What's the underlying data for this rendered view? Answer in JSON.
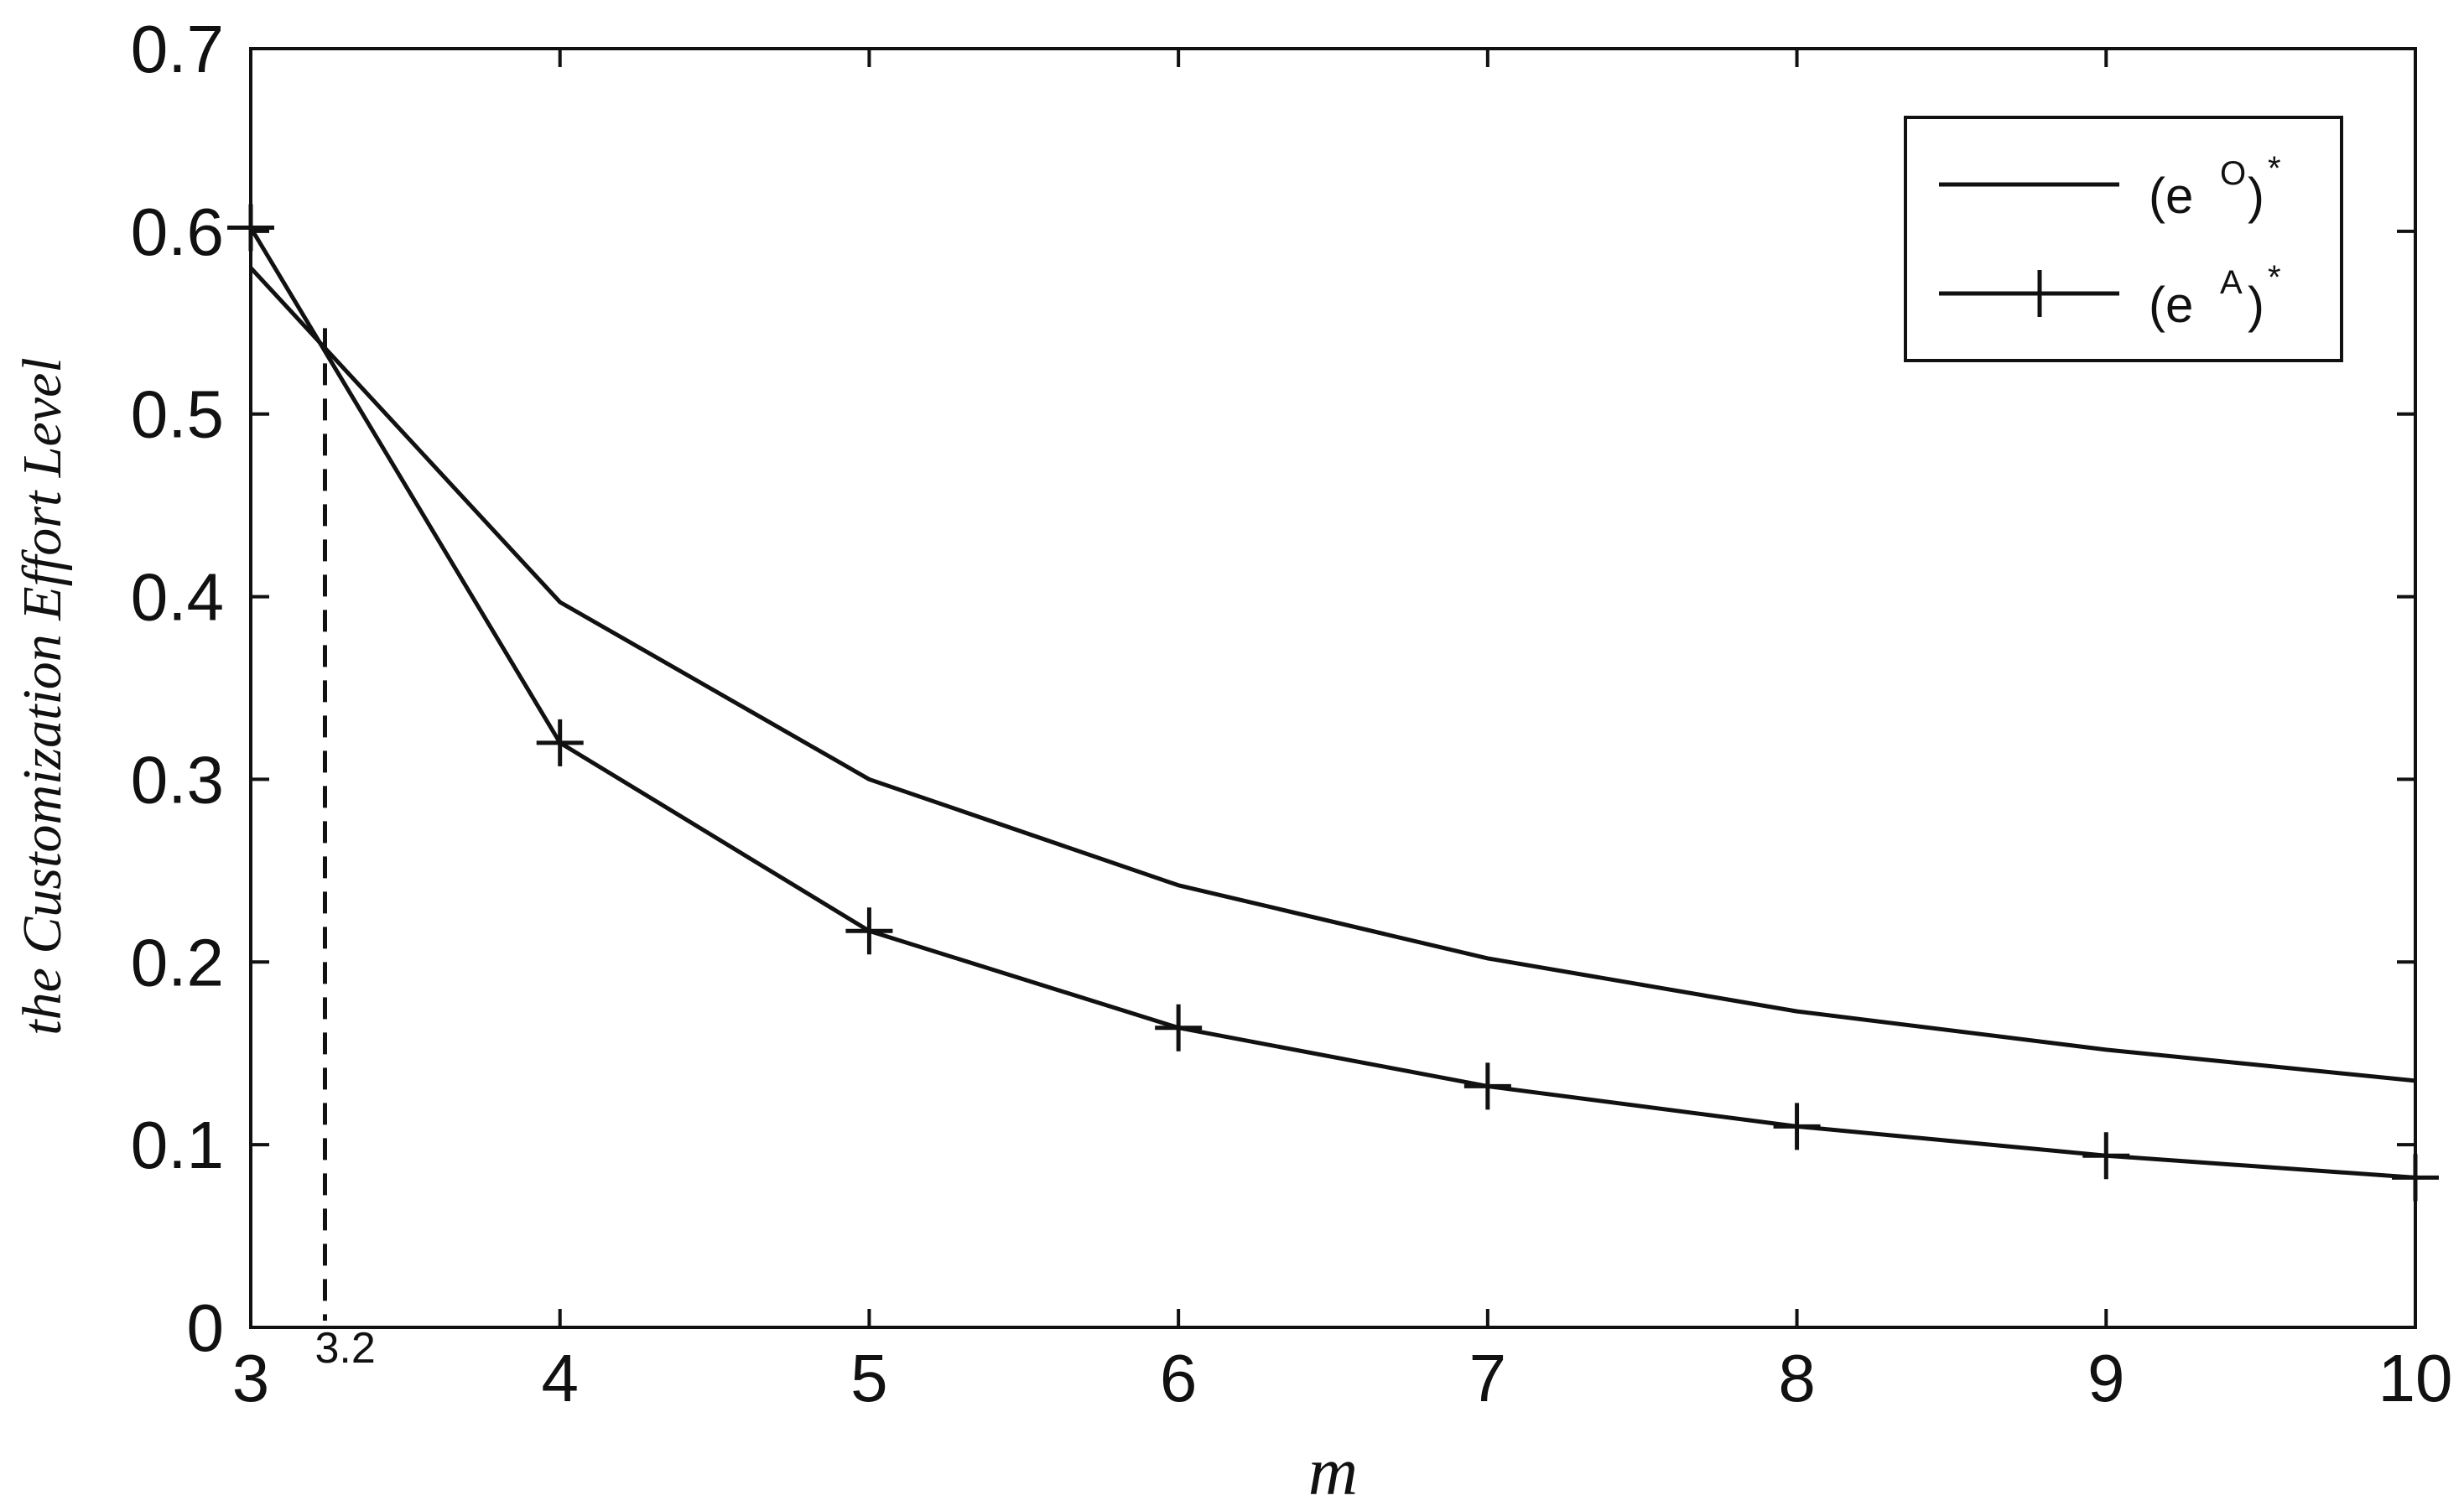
{
  "chart_data": {
    "type": "line",
    "xlabel": "m",
    "ylabel": "the Customization Effort Level",
    "xlim": [
      3,
      10
    ],
    "ylim": [
      0,
      0.7
    ],
    "x_ticks": [
      3,
      4,
      5,
      6,
      7,
      8,
      9,
      10
    ],
    "y_ticks": [
      0,
      0.1,
      0.2,
      0.3,
      0.4,
      0.5,
      0.6,
      0.7
    ],
    "y_tick_labels": [
      "0",
      "0.1",
      "0.2",
      "0.3",
      "0.4",
      "0.5",
      "0.6",
      "0.7"
    ],
    "grid": false,
    "legend_position": "top-right",
    "annotation": {
      "label": "3.2",
      "x": 3.24,
      "y": 0.547,
      "style": "dashed-vertical"
    },
    "series": [
      {
        "name": "(e^O)*",
        "legend_base": "(e",
        "legend_sup": "O",
        "legend_close": ")",
        "legend_star": "*",
        "marker": "none",
        "x": [
          3,
          4,
          5,
          6,
          7,
          8,
          9,
          10
        ],
        "y": [
          0.58,
          0.397,
          0.3,
          0.242,
          0.202,
          0.173,
          0.152,
          0.135
        ]
      },
      {
        "name": "(e^A)*",
        "legend_base": "(e",
        "legend_sup": "A",
        "legend_close": ")",
        "legend_star": "*",
        "marker": "plus",
        "x": [
          3,
          4,
          5,
          6,
          7,
          8,
          9,
          10
        ],
        "y": [
          0.602,
          0.32,
          0.217,
          0.164,
          0.132,
          0.11,
          0.094,
          0.082
        ]
      }
    ]
  }
}
